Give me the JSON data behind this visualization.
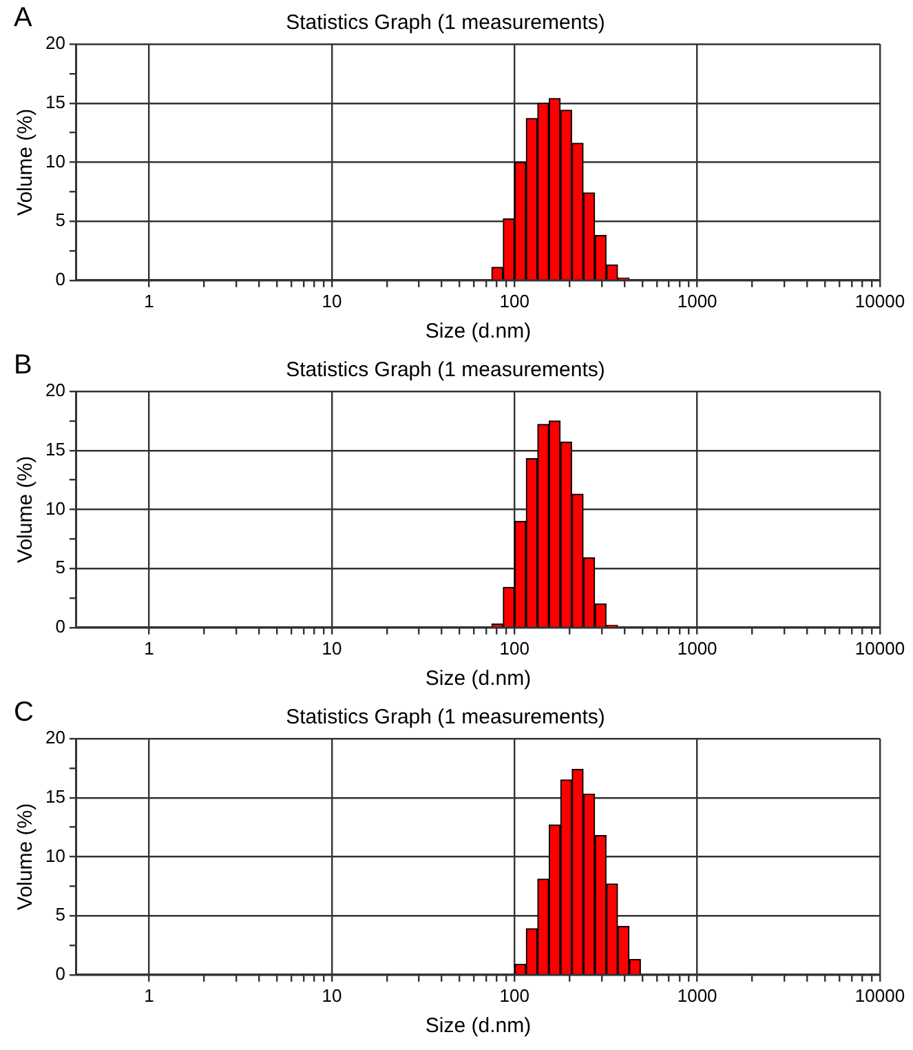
{
  "chart_data": [
    {
      "type": "histogram",
      "title": "Statistics Graph (1 measurements)",
      "xlabel": "Size (d.nm)",
      "ylabel": "Volume (%)",
      "annotations": [
        "A"
      ],
      "color": "#ff0000",
      "log": "x",
      "grid": true,
      "bins": [
        74.9,
        86.5,
        100,
        115.6,
        133.6,
        154.3,
        178.3,
        206.1,
        238.2,
        275.2,
        318.0,
        367.5,
        424.6
      ],
      "values": [
        1.1,
        5.2,
        10.0,
        13.7,
        15.0,
        15.4,
        14.4,
        11.6,
        7.4,
        3.8,
        1.3,
        0.2
      ],
      "xlim": [
        0.4,
        10000
      ],
      "xticks": [
        1,
        {
          "value": 2,
          "label": null
        },
        {
          "value": 3,
          "label": null
        },
        {
          "value": 4,
          "label": null
        },
        {
          "value": 5,
          "label": null
        },
        {
          "value": 6,
          "label": null
        },
        {
          "value": 7,
          "label": null
        },
        {
          "value": 8,
          "label": null
        },
        {
          "value": 9,
          "label": null
        },
        10,
        {
          "value": 20,
          "label": null
        },
        {
          "value": 30,
          "label": null
        },
        {
          "value": 40,
          "label": null
        },
        {
          "value": 50,
          "label": null
        },
        {
          "value": 60,
          "label": null
        },
        {
          "value": 70,
          "label": null
        },
        {
          "value": 80,
          "label": null
        },
        {
          "value": 90,
          "label": null
        },
        100,
        {
          "value": 200,
          "label": null
        },
        {
          "value": 300,
          "label": null
        },
        {
          "value": 400,
          "label": null
        },
        {
          "value": 500,
          "label": null
        },
        {
          "value": 600,
          "label": null
        },
        {
          "value": 700,
          "label": null
        },
        {
          "value": 800,
          "label": null
        },
        {
          "value": 900,
          "label": null
        },
        1000,
        {
          "value": 2000,
          "label": null
        },
        {
          "value": 3000,
          "label": null
        },
        {
          "value": 4000,
          "label": null
        },
        {
          "value": 5000,
          "label": null
        },
        {
          "value": 6000,
          "label": null
        },
        {
          "value": 7000,
          "label": null
        },
        {
          "value": 8000,
          "label": null
        },
        {
          "value": 9000,
          "label": null
        },
        10000
      ],
      "ylim": [
        0,
        20
      ],
      "yticks": [
        0,
        {
          "value": 2.5,
          "label": null
        },
        5,
        {
          "value": 7.5,
          "label": null
        },
        10,
        {
          "value": 12.5,
          "label": null
        },
        15,
        {
          "value": 17.5,
          "label": null
        },
        20
      ]
    },
    {
      "type": "histogram",
      "title": "Statistics Graph (1 measurements)",
      "xlabel": "Size (d.nm)",
      "ylabel": "Volume (%)",
      "annotations": [
        "B"
      ],
      "color": "#ff0000",
      "log": "x",
      "grid": true,
      "bins": [
        74.9,
        86.5,
        100,
        115.6,
        133.6,
        154.3,
        178.3,
        206.1,
        238.2,
        275.2,
        318.0,
        367.5
      ],
      "values": [
        0.3,
        3.4,
        9.0,
        14.3,
        17.2,
        17.5,
        15.7,
        11.3,
        5.9,
        2.0,
        0.2
      ],
      "xlim": [
        0.4,
        10000
      ],
      "xticks": [
        1,
        {
          "value": 2,
          "label": null
        },
        {
          "value": 3,
          "label": null
        },
        {
          "value": 4,
          "label": null
        },
        {
          "value": 5,
          "label": null
        },
        {
          "value": 6,
          "label": null
        },
        {
          "value": 7,
          "label": null
        },
        {
          "value": 8,
          "label": null
        },
        {
          "value": 9,
          "label": null
        },
        10,
        {
          "value": 20,
          "label": null
        },
        {
          "value": 30,
          "label": null
        },
        {
          "value": 40,
          "label": null
        },
        {
          "value": 50,
          "label": null
        },
        {
          "value": 60,
          "label": null
        },
        {
          "value": 70,
          "label": null
        },
        {
          "value": 80,
          "label": null
        },
        {
          "value": 90,
          "label": null
        },
        100,
        {
          "value": 200,
          "label": null
        },
        {
          "value": 300,
          "label": null
        },
        {
          "value": 400,
          "label": null
        },
        {
          "value": 500,
          "label": null
        },
        {
          "value": 600,
          "label": null
        },
        {
          "value": 700,
          "label": null
        },
        {
          "value": 800,
          "label": null
        },
        {
          "value": 900,
          "label": null
        },
        1000,
        {
          "value": 2000,
          "label": null
        },
        {
          "value": 3000,
          "label": null
        },
        {
          "value": 4000,
          "label": null
        },
        {
          "value": 5000,
          "label": null
        },
        {
          "value": 6000,
          "label": null
        },
        {
          "value": 7000,
          "label": null
        },
        {
          "value": 8000,
          "label": null
        },
        {
          "value": 9000,
          "label": null
        },
        10000
      ],
      "ylim": [
        0,
        20
      ],
      "yticks": [
        0,
        {
          "value": 2.5,
          "label": null
        },
        5,
        {
          "value": 7.5,
          "label": null
        },
        10,
        {
          "value": 12.5,
          "label": null
        },
        15,
        {
          "value": 17.5,
          "label": null
        },
        20
      ]
    },
    {
      "type": "histogram",
      "title": "Statistics Graph (1 measurements)",
      "xlabel": "Size (d.nm)",
      "ylabel": "Volume (%)",
      "annotations": [
        "C"
      ],
      "color": "#ff0000",
      "log": "x",
      "grid": true,
      "bins": [
        100,
        115.6,
        133.6,
        154.3,
        178.3,
        206.1,
        238.2,
        275.2,
        318.0,
        367.5,
        424.6,
        490.7
      ],
      "values": [
        0.9,
        3.9,
        8.1,
        12.7,
        16.5,
        17.4,
        15.3,
        11.8,
        7.7,
        4.1,
        1.3
      ],
      "xlim": [
        0.4,
        10000
      ],
      "xticks": [
        1,
        {
          "value": 2,
          "label": null
        },
        {
          "value": 3,
          "label": null
        },
        {
          "value": 4,
          "label": null
        },
        {
          "value": 5,
          "label": null
        },
        {
          "value": 6,
          "label": null
        },
        {
          "value": 7,
          "label": null
        },
        {
          "value": 8,
          "label": null
        },
        {
          "value": 9,
          "label": null
        },
        10,
        {
          "value": 20,
          "label": null
        },
        {
          "value": 30,
          "label": null
        },
        {
          "value": 40,
          "label": null
        },
        {
          "value": 50,
          "label": null
        },
        {
          "value": 60,
          "label": null
        },
        {
          "value": 70,
          "label": null
        },
        {
          "value": 80,
          "label": null
        },
        {
          "value": 90,
          "label": null
        },
        100,
        {
          "value": 200,
          "label": null
        },
        {
          "value": 300,
          "label": null
        },
        {
          "value": 400,
          "label": null
        },
        {
          "value": 500,
          "label": null
        },
        {
          "value": 600,
          "label": null
        },
        {
          "value": 700,
          "label": null
        },
        {
          "value": 800,
          "label": null
        },
        {
          "value": 900,
          "label": null
        },
        1000,
        {
          "value": 2000,
          "label": null
        },
        {
          "value": 3000,
          "label": null
        },
        {
          "value": 4000,
          "label": null
        },
        {
          "value": 5000,
          "label": null
        },
        {
          "value": 6000,
          "label": null
        },
        {
          "value": 7000,
          "label": null
        },
        {
          "value": 8000,
          "label": null
        },
        {
          "value": 9000,
          "label": null
        },
        10000
      ],
      "ylim": [
        0,
        20
      ],
      "yticks": [
        0,
        {
          "value": 2.5,
          "label": null
        },
        5,
        {
          "value": 7.5,
          "label": null
        },
        10,
        {
          "value": 12.5,
          "label": null
        },
        15,
        {
          "value": 17.5,
          "label": null
        },
        20
      ]
    }
  ]
}
